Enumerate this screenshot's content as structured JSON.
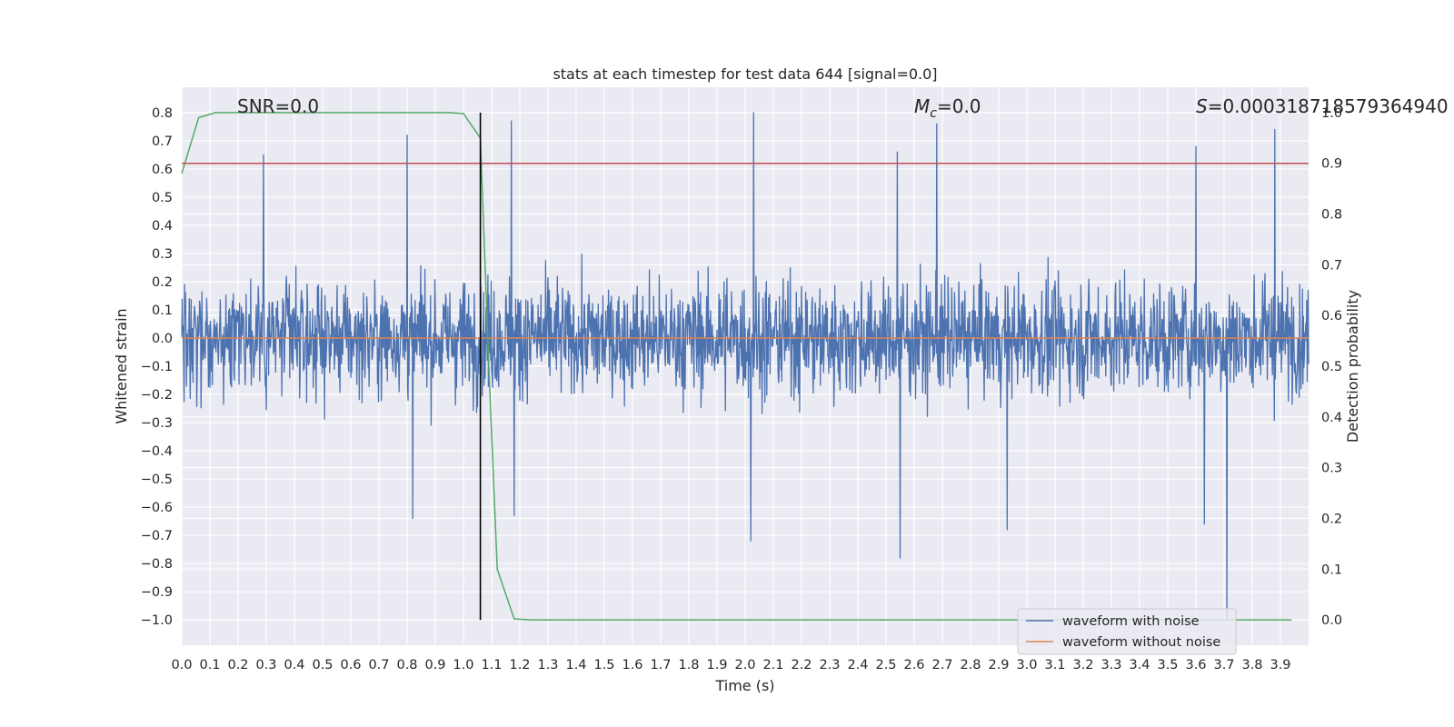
{
  "chart_data": {
    "type": "line",
    "title": "stats at each timestep for test data 644 [signal=0.0]",
    "xlabel": "Time (s)",
    "ylabel": "Whitened strain",
    "y2label": "Detection probability",
    "xlim": [
      0.0,
      4.0
    ],
    "ylim": [
      -1.09,
      0.89
    ],
    "y2lim": [
      -0.05,
      1.05
    ],
    "x_ticks": [
      "0.0",
      "0.1",
      "0.2",
      "0.3",
      "0.4",
      "0.5",
      "0.6",
      "0.7",
      "0.8",
      "0.9",
      "1.0",
      "1.1",
      "1.2",
      "1.3",
      "1.4",
      "1.5",
      "1.6",
      "1.7",
      "1.8",
      "1.9",
      "2.0",
      "2.1",
      "2.2",
      "2.3",
      "2.4",
      "2.5",
      "2.6",
      "2.7",
      "2.8",
      "2.9",
      "3.0",
      "3.1",
      "3.2",
      "3.3",
      "3.4",
      "3.5",
      "3.6",
      "3.7",
      "3.8",
      "3.9"
    ],
    "y_ticks": [
      "0.8",
      "0.7",
      "0.6",
      "0.5",
      "0.4",
      "0.3",
      "0.2",
      "0.1",
      "0.0",
      "−0.1",
      "−0.2",
      "−0.3",
      "−0.4",
      "−0.5",
      "−0.6",
      "−0.7",
      "−0.8",
      "−0.9",
      "−1.0"
    ],
    "y2_ticks": [
      "1.0",
      "0.9",
      "0.8",
      "0.7",
      "0.6",
      "0.5",
      "0.4",
      "0.3",
      "0.2",
      "0.1",
      "0.0"
    ],
    "grid": true,
    "legend_position": "lower-right",
    "annotations": {
      "snr": "SNR=0.0",
      "mc_symbol": "M",
      "mc_sub": "c",
      "mc_value": "=0.0",
      "s_symbol": "S",
      "s_value": "=0.000318718579364940"
    },
    "series": [
      {
        "name": "waveform with noise",
        "axis": "left",
        "color": "#4c72b0",
        "description_range": [
          -1.0,
          0.8
        ],
        "peaks": [
          {
            "x": 0.29,
            "y": 0.65
          },
          {
            "x": 0.8,
            "y": 0.72
          },
          {
            "x": 1.17,
            "y": 0.77
          },
          {
            "x": 2.03,
            "y": 0.8
          },
          {
            "x": 2.54,
            "y": 0.66
          },
          {
            "x": 2.68,
            "y": 0.76
          },
          {
            "x": 3.6,
            "y": 0.68
          },
          {
            "x": 3.88,
            "y": 0.74
          }
        ],
        "troughs": [
          {
            "x": 0.82,
            "y": -0.64
          },
          {
            "x": 1.18,
            "y": -0.63
          },
          {
            "x": 2.02,
            "y": -0.72
          },
          {
            "x": 2.55,
            "y": -0.78
          },
          {
            "x": 2.93,
            "y": -0.68
          },
          {
            "x": 3.71,
            "y": -1.0
          },
          {
            "x": 3.63,
            "y": -0.66
          }
        ]
      },
      {
        "name": "waveform without noise",
        "axis": "left",
        "color": "#dd8452",
        "x": [
          0.0,
          4.0
        ],
        "y": [
          0.0,
          0.0
        ]
      },
      {
        "axis": "right",
        "color": "#55a868",
        "x": [
          0.0,
          0.06,
          0.12,
          0.2,
          0.5,
          0.95,
          1.0,
          1.06,
          1.09,
          1.12,
          1.18,
          1.24,
          3.94
        ],
        "y": [
          0.88,
          0.99,
          1.0,
          1.0,
          1.0,
          1.0,
          0.998,
          0.95,
          0.5,
          0.1,
          0.002,
          0.0,
          0.0
        ]
      },
      {
        "axis": "right",
        "color": "#c44e52",
        "x": [
          0.0,
          4.0
        ],
        "y": [
          0.9,
          0.9
        ]
      },
      {
        "axis": "left",
        "color": "#000000",
        "x": [
          1.06,
          1.06
        ],
        "y": [
          -1.0,
          0.8
        ]
      }
    ]
  }
}
